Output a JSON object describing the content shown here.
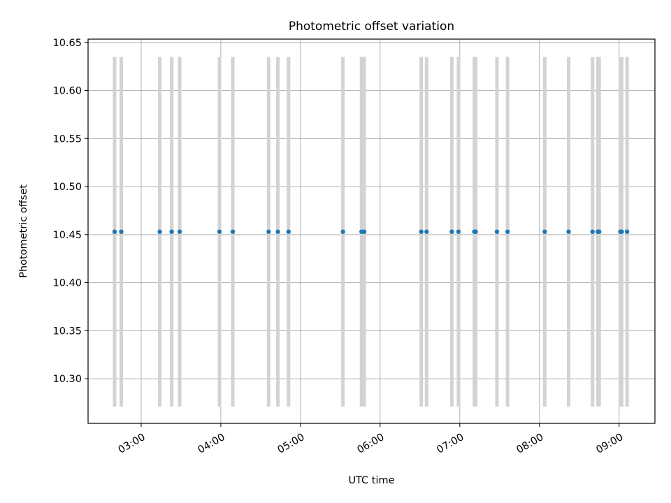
{
  "chart_data": {
    "type": "scatter",
    "title": "Photometric offset variation",
    "xlabel": "UTC time",
    "ylabel": "Photometric offset",
    "x_axis": "time",
    "xlim": [
      "02:20",
      "09:27"
    ],
    "ylim": [
      10.2535,
      10.6535
    ],
    "grid": true,
    "x_ticks": [
      "03:00",
      "04:00",
      "05:00",
      "06:00",
      "07:00",
      "08:00",
      "09:00"
    ],
    "y_ticks": [
      "10.30",
      "10.35",
      "10.40",
      "10.45",
      "10.50",
      "10.55",
      "10.60",
      "10.65"
    ],
    "series": [
      {
        "marker": "circle",
        "color": "#1f77b4",
        "points": [
          {
            "time": "02:40",
            "offset": 10.453,
            "err": 0.182
          },
          {
            "time": "02:45",
            "offset": 10.453,
            "err": 0.182
          },
          {
            "time": "03:14",
            "offset": 10.453,
            "err": 0.182
          },
          {
            "time": "03:23",
            "offset": 10.453,
            "err": 0.182
          },
          {
            "time": "03:29",
            "offset": 10.453,
            "err": 0.182
          },
          {
            "time": "03:59",
            "offset": 10.453,
            "err": 0.182
          },
          {
            "time": "04:09",
            "offset": 10.453,
            "err": 0.182
          },
          {
            "time": "04:36",
            "offset": 10.453,
            "err": 0.182
          },
          {
            "time": "04:43",
            "offset": 10.453,
            "err": 0.182
          },
          {
            "time": "04:51",
            "offset": 10.453,
            "err": 0.182
          },
          {
            "time": "05:32",
            "offset": 10.453,
            "err": 0.182
          },
          {
            "time": "05:46",
            "offset": 10.453,
            "err": 0.182
          },
          {
            "time": "05:48",
            "offset": 10.453,
            "err": 0.182
          },
          {
            "time": "06:31",
            "offset": 10.453,
            "err": 0.182
          },
          {
            "time": "06:35",
            "offset": 10.453,
            "err": 0.182
          },
          {
            "time": "06:54",
            "offset": 10.453,
            "err": 0.182
          },
          {
            "time": "06:59",
            "offset": 10.453,
            "err": 0.182
          },
          {
            "time": "07:11",
            "offset": 10.453,
            "err": 0.182
          },
          {
            "time": "07:12",
            "offset": 10.453,
            "err": 0.182
          },
          {
            "time": "07:28",
            "offset": 10.453,
            "err": 0.182
          },
          {
            "time": "07:36",
            "offset": 10.453,
            "err": 0.182
          },
          {
            "time": "08:04",
            "offset": 10.453,
            "err": 0.182
          },
          {
            "time": "08:22",
            "offset": 10.453,
            "err": 0.182
          },
          {
            "time": "08:40",
            "offset": 10.453,
            "err": 0.182
          },
          {
            "time": "08:44",
            "offset": 10.453,
            "err": 0.182
          },
          {
            "time": "08:45",
            "offset": 10.453,
            "err": 0.182
          },
          {
            "time": "09:01",
            "offset": 10.453,
            "err": 0.182
          },
          {
            "time": "09:02",
            "offset": 10.453,
            "err": 0.182
          },
          {
            "time": "09:06",
            "offset": 10.453,
            "err": 0.182
          }
        ]
      }
    ],
    "errorbar_color": "#d3d3d3"
  }
}
